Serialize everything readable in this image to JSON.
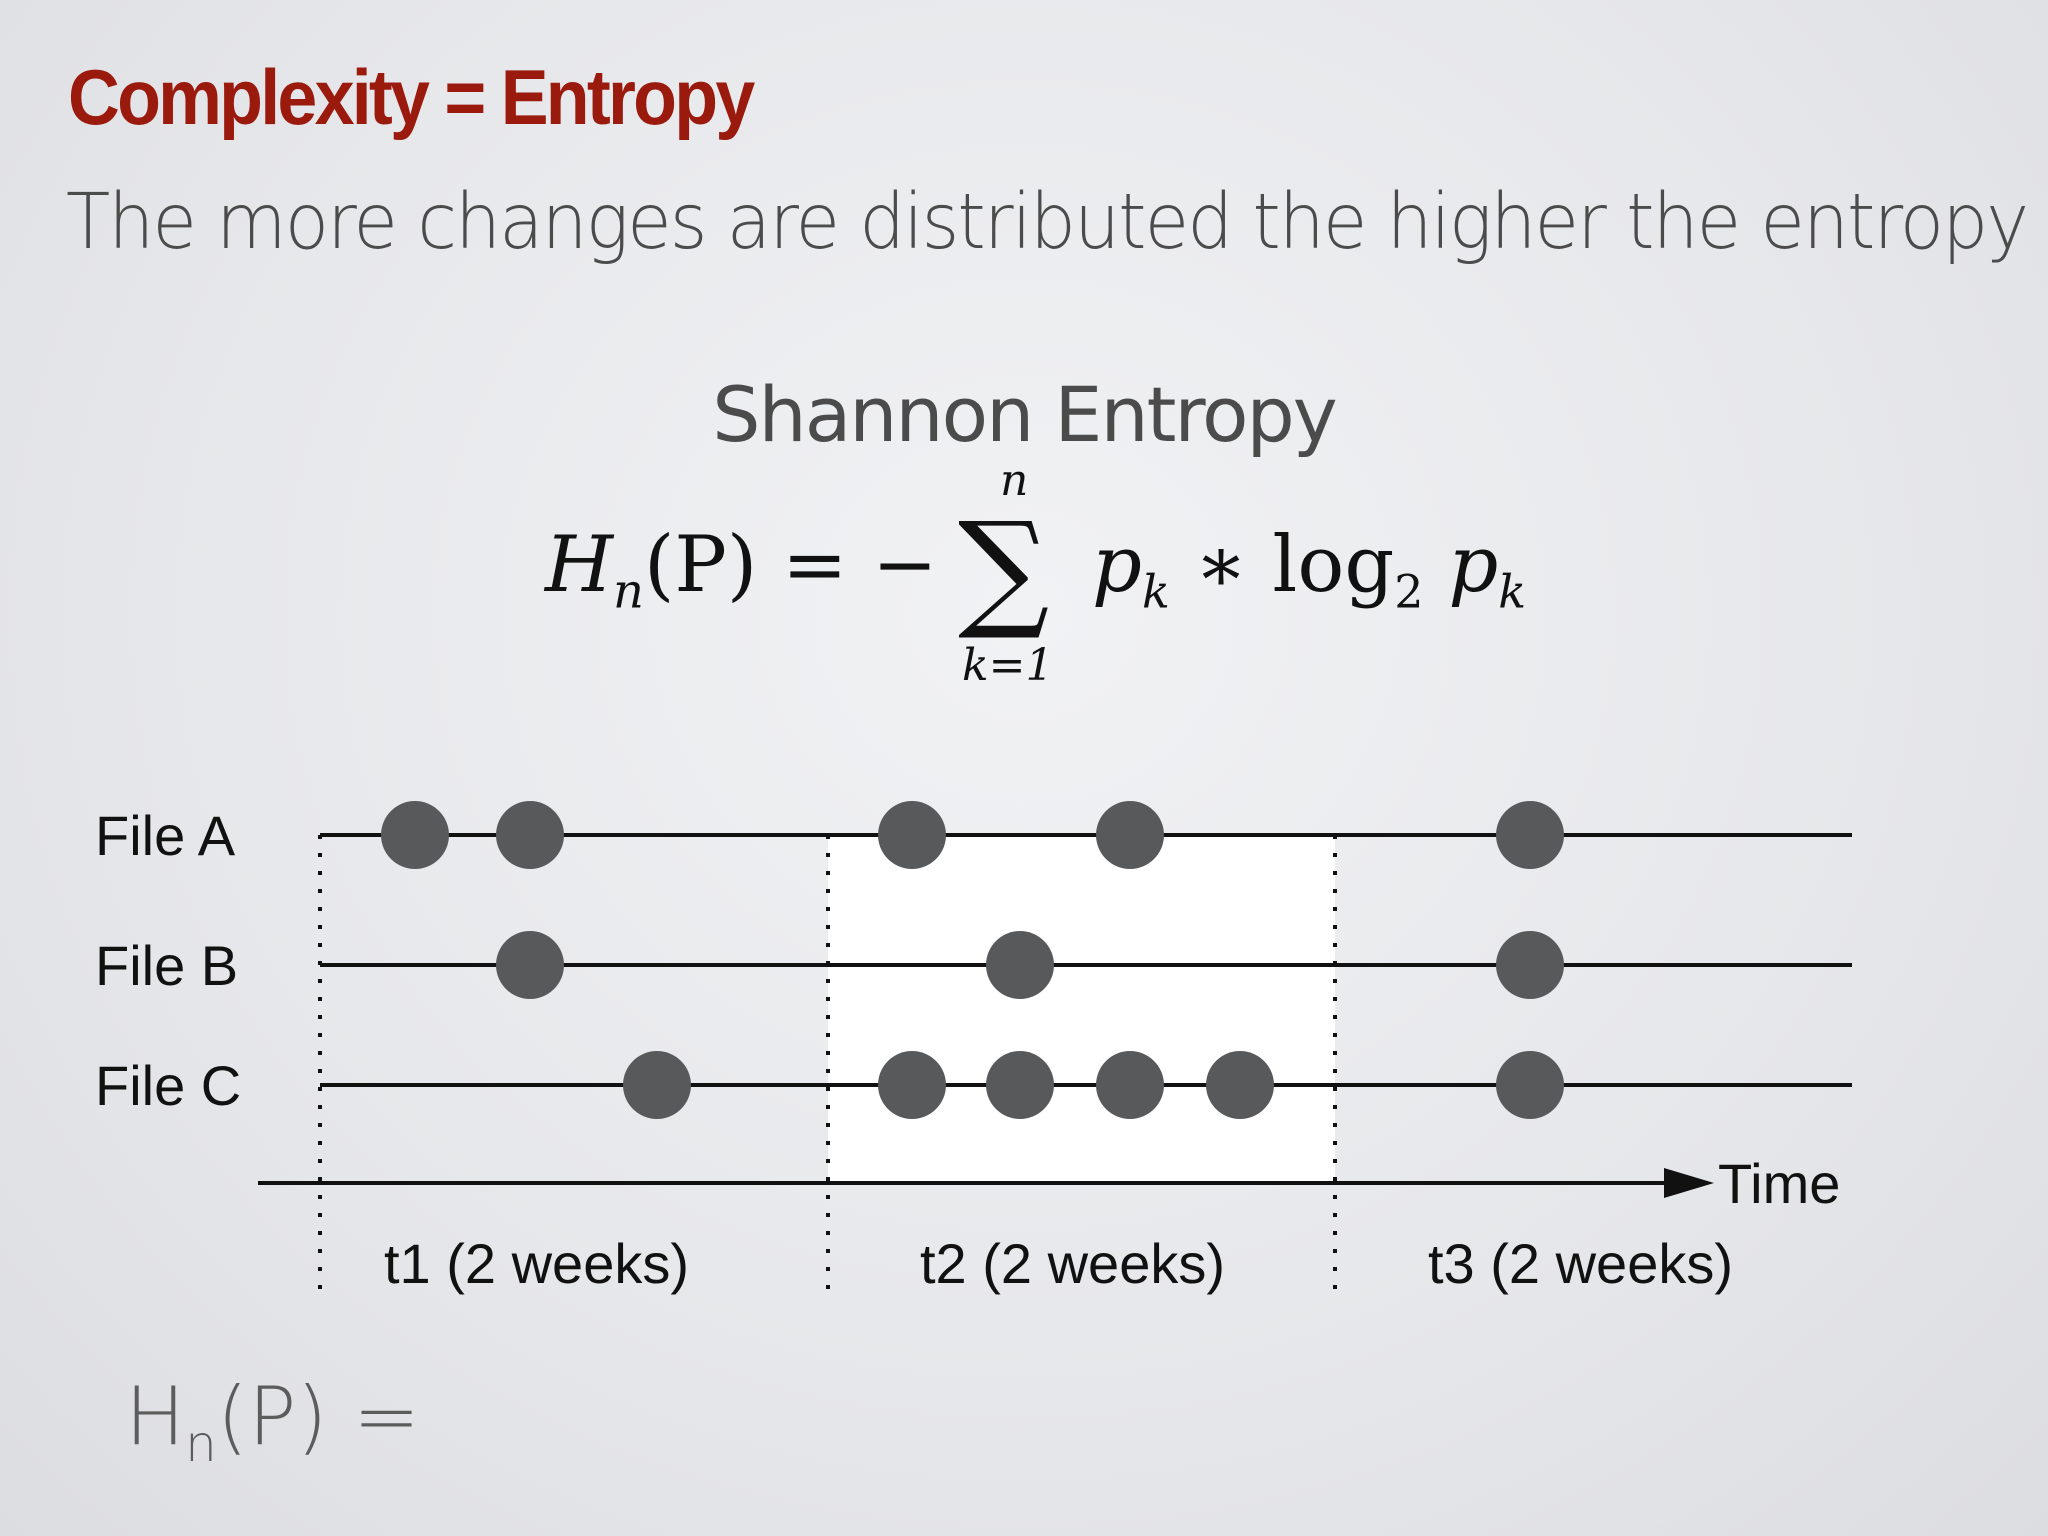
{
  "slide": {
    "title": "Complexity = Entropy",
    "subtitle": "The more changes are distributed the higher the entropy"
  },
  "formula": {
    "heading": "Shannon Entropy",
    "lhs": "H",
    "lhs_sub": "n",
    "lhs_arg": "(P) = −",
    "sum_upper": "n",
    "sum_symbol": "∑",
    "sum_lower": "k=1",
    "term1": "p",
    "term1_sub": "k",
    "operator": " ∗ log",
    "log_base": "2",
    "term2": " p",
    "term2_sub": "k"
  },
  "diagram": {
    "files": [
      {
        "label": "File A",
        "change_positions": [
          415,
          530,
          912,
          1130,
          1530
        ]
      },
      {
        "label": "File B",
        "change_positions": [
          530,
          1020,
          1530
        ]
      },
      {
        "label": "File C",
        "change_positions": [
          657,
          912,
          1020,
          1130,
          1240,
          1530
        ]
      }
    ],
    "axis_label": "Time",
    "periods": [
      "t1 (2 weeks)",
      "t2 (2 weeks)",
      "t3 (2 weeks)"
    ],
    "highlighted_period": 1,
    "colors": {
      "dot": "#58595b",
      "line": "#111111",
      "highlight": "#ffffff"
    }
  },
  "bottom": {
    "lhs": "H",
    "lhs_sub": "n",
    "rest": "(P) ="
  }
}
